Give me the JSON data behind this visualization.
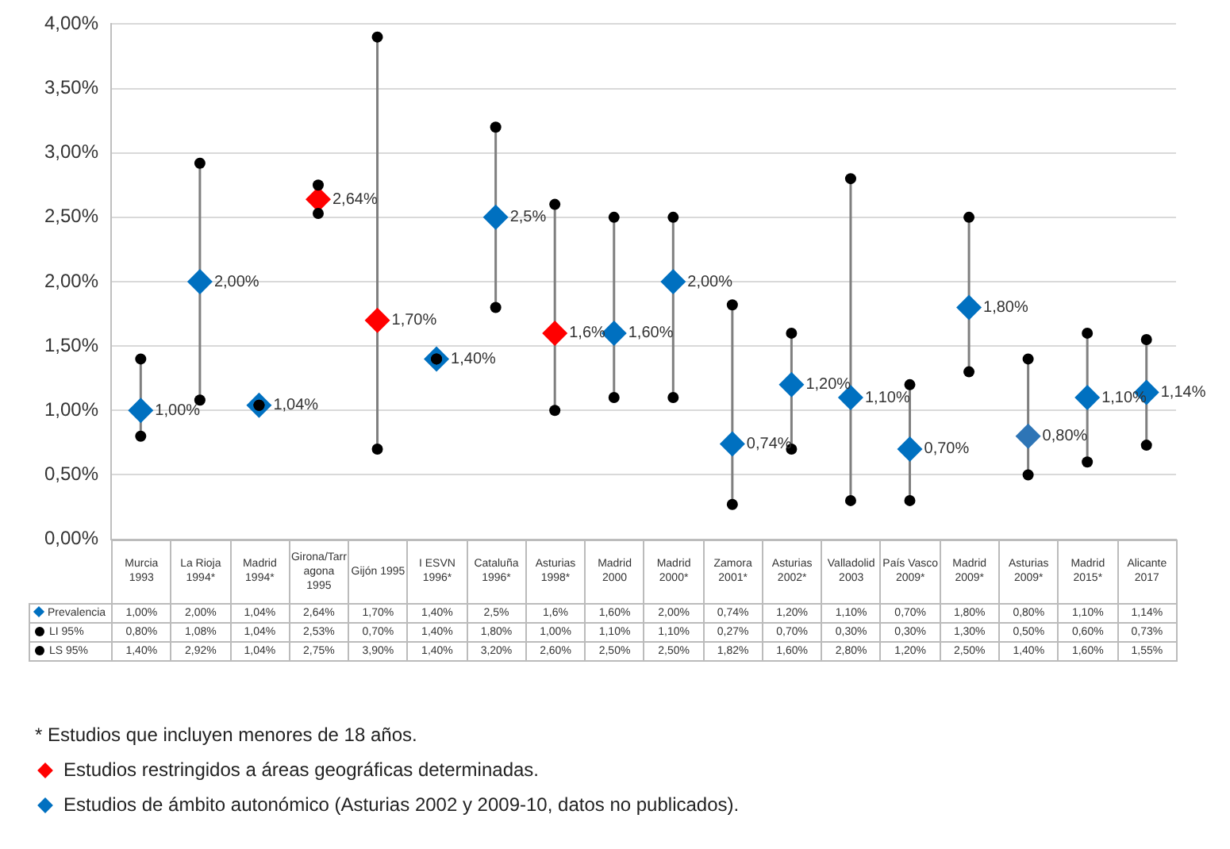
{
  "chart_data": {
    "type": "scatter",
    "categories": [
      "Murcia 1993",
      "La Rioja 1994*",
      "Madrid 1994*",
      "Girona/Tarragona 1995",
      "Gijón 1995",
      "I ESVN 1996*",
      "Cataluña 1996*",
      "Asturias 1998*",
      "Madrid 2000",
      "Madrid 2000*",
      "Zamora 2001*",
      "Asturias 2002*",
      "Valladolid 2003",
      "País Vasco 2009*",
      "Madrid 2009*",
      "Asturias 2009*",
      "Madrid 2015*",
      "Alicante 2017"
    ],
    "series": [
      {
        "name": "Prevalencia",
        "marker": "diamond",
        "colors": [
          "#0070c0",
          "#0070c0",
          "#0070c0",
          "#ff0000",
          "#ff0000",
          "#0070c0",
          "#0070c0",
          "#ff0000",
          "#0070c0",
          "#0070c0",
          "#0070c0",
          "#0070c0",
          "#0070c0",
          "#0070c0",
          "#0070c0",
          "#2e75b6",
          "#0070c0",
          "#0070c0"
        ],
        "values": [
          1.0,
          2.0,
          1.04,
          2.64,
          1.7,
          1.4,
          2.5,
          1.6,
          1.6,
          2.0,
          0.74,
          1.2,
          1.1,
          0.7,
          1.8,
          0.8,
          1.1,
          1.14
        ],
        "value_labels": [
          "1,00%",
          "2,00%",
          "1,04%",
          "2,64%",
          "1,70%",
          "1,40%",
          "2,5%",
          "1,6%",
          "1,60%",
          "2,00%",
          "0,74%",
          "1,20%",
          "1,10%",
          "0,70%",
          "1,80%",
          "0,80%",
          "1,10%",
          "1,14%"
        ]
      },
      {
        "name": "LI 95%",
        "marker": "circle",
        "color": "#000000",
        "values": [
          0.8,
          1.08,
          1.04,
          2.53,
          0.7,
          1.4,
          1.8,
          1.0,
          1.1,
          1.1,
          0.27,
          0.7,
          0.3,
          0.3,
          1.3,
          0.5,
          0.6,
          0.73
        ],
        "value_labels": [
          "0,80%",
          "1,08%",
          "1,04%",
          "2,53%",
          "0,70%",
          "1,40%",
          "1,80%",
          "1,00%",
          "1,10%",
          "1,10%",
          "0,27%",
          "0,70%",
          "0,30%",
          "0,30%",
          "1,30%",
          "0,50%",
          "0,60%",
          "0,73%"
        ]
      },
      {
        "name": "LS 95%",
        "marker": "circle",
        "color": "#000000",
        "values": [
          1.4,
          2.92,
          1.04,
          2.75,
          3.9,
          1.4,
          3.2,
          2.6,
          2.5,
          2.5,
          1.82,
          1.6,
          2.8,
          1.2,
          2.5,
          1.4,
          1.6,
          1.55
        ],
        "value_labels": [
          "1,40%",
          "2,92%",
          "1,04%",
          "2,75%",
          "3,90%",
          "1,40%",
          "3,20%",
          "2,60%",
          "2,50%",
          "2,50%",
          "1,82%",
          "1,60%",
          "2,80%",
          "1,20%",
          "2,50%",
          "1,40%",
          "1,60%",
          "1,55%"
        ]
      }
    ],
    "ylim": [
      0,
      4
    ],
    "yticks": [
      {
        "value": 0,
        "label": "0,00%"
      },
      {
        "value": 0.5,
        "label": "0,50%"
      },
      {
        "value": 1,
        "label": "1,00%"
      },
      {
        "value": 1.5,
        "label": "1,50%"
      },
      {
        "value": 2,
        "label": "2,00%"
      },
      {
        "value": 2.5,
        "label": "2,50%"
      },
      {
        "value": 3,
        "label": "3,00%"
      },
      {
        "value": 3.5,
        "label": "3,50%"
      },
      {
        "value": 4,
        "label": "4,00%"
      }
    ],
    "grid": "y",
    "legend": "bottom",
    "annotations": [
      {
        "text": "1,00%",
        "x": "Murcia 1993",
        "y": 1.0
      },
      {
        "text": "2,00%",
        "x": "La Rioja 1994*",
        "y": 2.0
      },
      {
        "text": "1,04%",
        "x": "Madrid 1994*",
        "y": 1.04
      },
      {
        "text": "2,64%",
        "x": "Girona/Tarragona 1995",
        "y": 2.64
      },
      {
        "text": "1,70%",
        "x": "Gijón 1995",
        "y": 1.7
      },
      {
        "text": "1,40%",
        "x": "I ESVN 1996*",
        "y": 1.4
      },
      {
        "text": "2,5%",
        "x": "Cataluña 1996*",
        "y": 2.5
      },
      {
        "text": "1,6%",
        "x": "Asturias 1998*",
        "y": 1.6
      },
      {
        "text": "1,60%",
        "x": "Madrid 2000",
        "y": 1.6
      },
      {
        "text": "2,00%",
        "x": "Madrid 2000*",
        "y": 2.0
      },
      {
        "text": "0,74%",
        "x": "Zamora 2001*",
        "y": 0.74
      },
      {
        "text": "1,20%",
        "x": "Asturias 2002*",
        "y": 1.2
      },
      {
        "text": "1,10%",
        "x": "Valladolid 2003",
        "y": 1.1
      },
      {
        "text": "0,70%",
        "x": "País Vasco 2009*",
        "y": 0.7
      },
      {
        "text": "1,80%",
        "x": "Madrid 2009*",
        "y": 1.8
      },
      {
        "text": "0,80%",
        "x": "Asturias 2009*",
        "y": 0.8
      },
      {
        "text": "1,10%",
        "x": "Madrid 2015*",
        "y": 1.1
      },
      {
        "text": "1,14%",
        "x": "Alicante 2017",
        "y": 1.14
      },
      "* Estudios que incluyen menores de 18 años.",
      "Estudios restringidos a áreas geográficas determinadas.",
      "Estudios de ámbito autonómico (Asturias 2002 y 2009-10, datos no publicados)."
    ]
  }
}
